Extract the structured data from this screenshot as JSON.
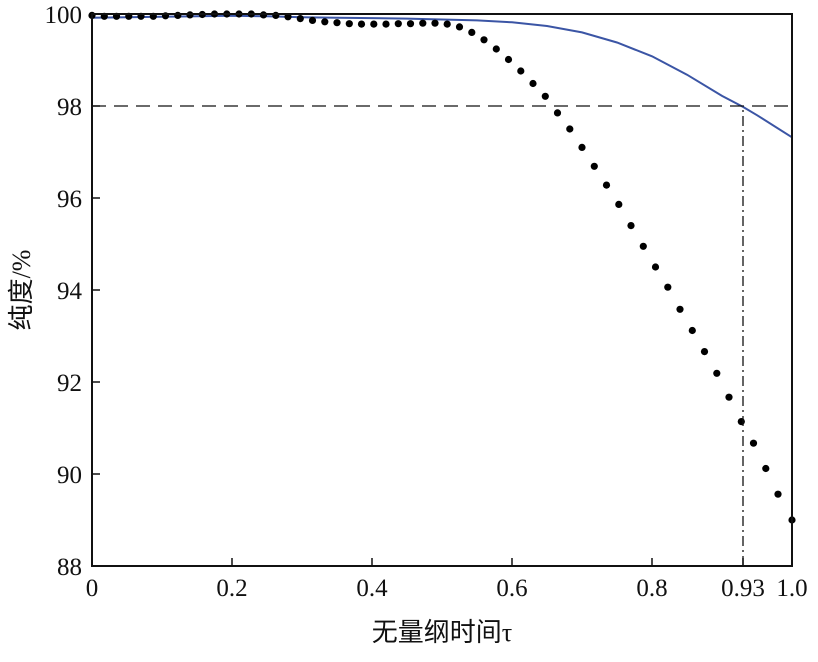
{
  "chart_data": {
    "type": "line",
    "xlabel": "无量纲时间τ",
    "ylabel": "纯度/%",
    "xlim": [
      0,
      1.0
    ],
    "ylim": [
      88,
      100
    ],
    "grid": false,
    "x_ticks": [
      {
        "value": 0,
        "label": "0"
      },
      {
        "value": 0.2,
        "label": "0.2"
      },
      {
        "value": 0.4,
        "label": "0.4"
      },
      {
        "value": 0.6,
        "label": "0.6"
      },
      {
        "value": 0.8,
        "label": "0.8"
      },
      {
        "value": 0.93,
        "label": "0.93"
      },
      {
        "value": 1.0,
        "label": "1.0"
      }
    ],
    "y_ticks": [
      {
        "value": 88,
        "label": "88"
      },
      {
        "value": 90,
        "label": "90"
      },
      {
        "value": 92,
        "label": "92"
      },
      {
        "value": 94,
        "label": "94"
      },
      {
        "value": 96,
        "label": "96"
      },
      {
        "value": 98,
        "label": "98"
      },
      {
        "value": 100,
        "label": "100"
      }
    ],
    "series": [
      {
        "style": "line",
        "color": "#3b55a5",
        "x": [
          0,
          0.05,
          0.1,
          0.15,
          0.2,
          0.25,
          0.3,
          0.35,
          0.4,
          0.45,
          0.5,
          0.55,
          0.6,
          0.65,
          0.7,
          0.75,
          0.8,
          0.85,
          0.9,
          0.93,
          0.95,
          1.0
        ],
        "y": [
          99.92,
          99.93,
          99.94,
          99.95,
          99.96,
          99.95,
          99.93,
          99.92,
          99.91,
          99.9,
          99.88,
          99.86,
          99.82,
          99.74,
          99.6,
          99.38,
          99.08,
          98.68,
          98.22,
          97.98,
          97.8,
          97.32
        ]
      },
      {
        "style": "dots",
        "color": "#000000",
        "x": [
          0,
          0.0175,
          0.035,
          0.0525,
          0.07,
          0.0875,
          0.105,
          0.1225,
          0.14,
          0.1575,
          0.175,
          0.1925,
          0.21,
          0.2275,
          0.245,
          0.2625,
          0.28,
          0.2975,
          0.315,
          0.3325,
          0.35,
          0.3675,
          0.385,
          0.4025,
          0.42,
          0.4375,
          0.455,
          0.4725,
          0.49,
          0.5075,
          0.525,
          0.5425,
          0.56,
          0.5775,
          0.595,
          0.6125,
          0.63,
          0.6475,
          0.665,
          0.6825,
          0.7,
          0.7175,
          0.735,
          0.7525,
          0.77,
          0.7875,
          0.805,
          0.8225,
          0.84,
          0.8575,
          0.875,
          0.8925,
          0.91,
          0.9275,
          0.945,
          0.9625,
          0.98,
          1.0
        ],
        "y": [
          99.97,
          99.95,
          99.95,
          99.95,
          99.95,
          99.95,
          99.96,
          99.97,
          99.98,
          99.99,
          100.0,
          100.0,
          100.0,
          100.0,
          99.98,
          99.97,
          99.94,
          99.9,
          99.86,
          99.83,
          99.81,
          99.79,
          99.78,
          99.78,
          99.78,
          99.79,
          99.79,
          99.8,
          99.8,
          99.78,
          99.72,
          99.6,
          99.44,
          99.24,
          99.01,
          98.76,
          98.49,
          98.21,
          97.85,
          97.5,
          97.1,
          96.69,
          96.28,
          95.86,
          95.4,
          94.95,
          94.5,
          94.06,
          93.58,
          93.12,
          92.66,
          92.19,
          91.67,
          91.14,
          90.67,
          90.12,
          89.56,
          89.0
        ]
      }
    ],
    "reference_lines": [
      {
        "orientation": "horizontal",
        "value": 98,
        "style": "dashed",
        "x_from": 0,
        "x_to": 1.0
      },
      {
        "orientation": "vertical",
        "value": 0.93,
        "style": "dashdot",
        "y_from": 88,
        "y_to": 98
      }
    ]
  }
}
